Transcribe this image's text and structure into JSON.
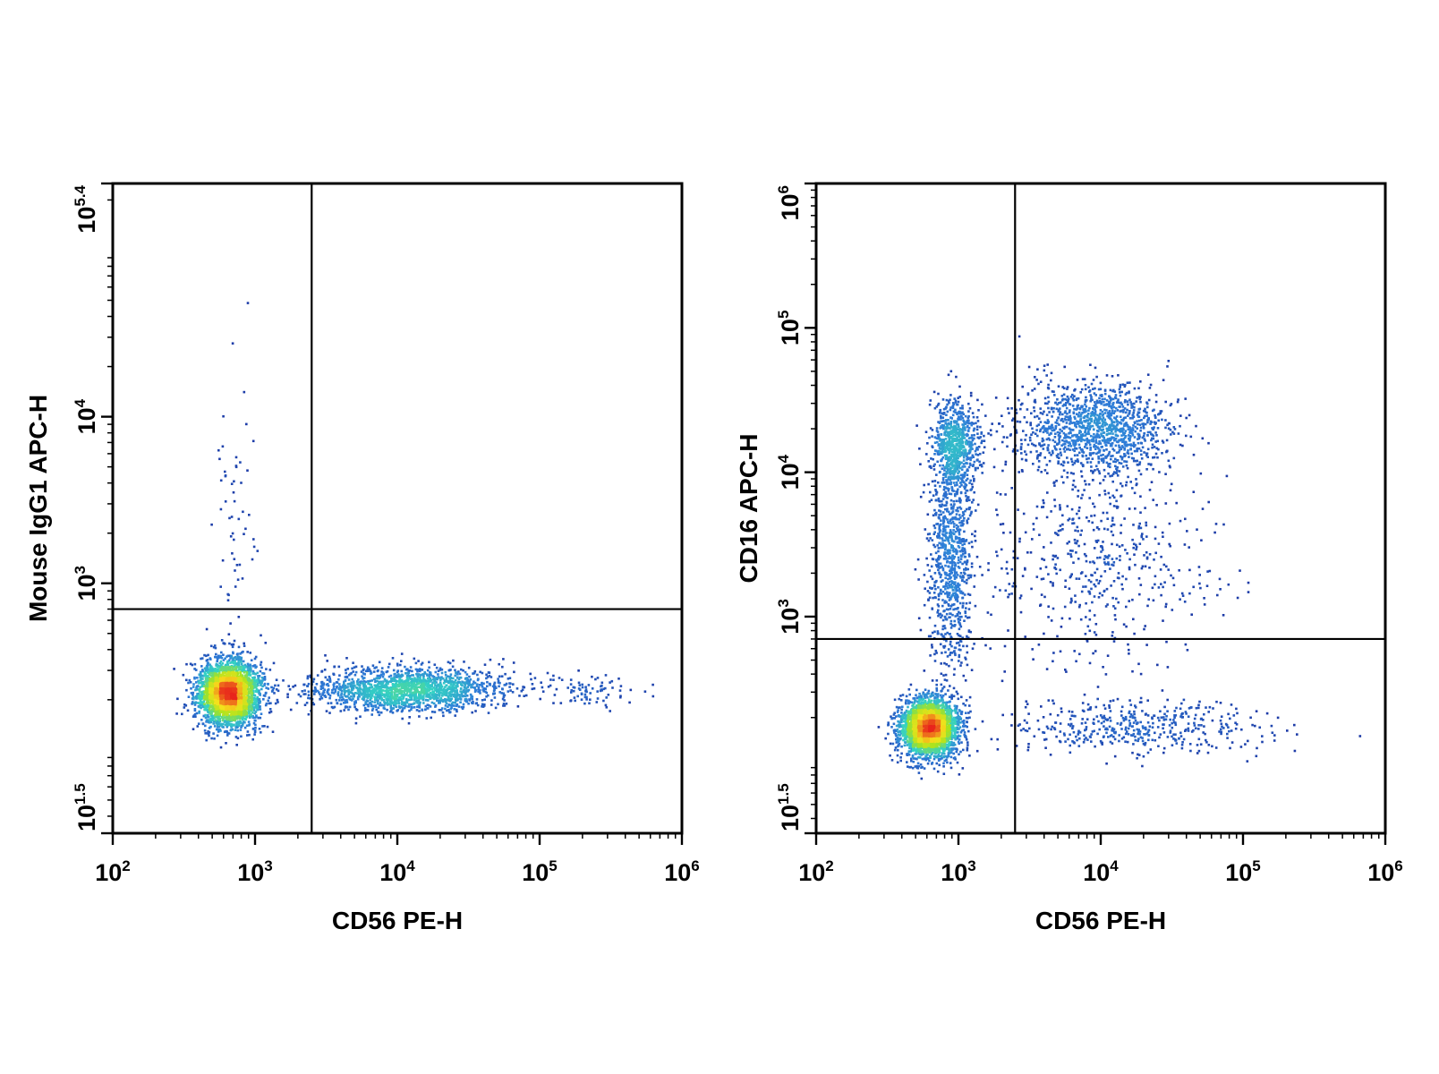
{
  "chart_data": [
    {
      "type": "scatter",
      "subtype": "flow-cytometry-density-dot-plot",
      "xlabel": "CD56 PE-H",
      "ylabel": "Mouse IgG1 APC-H",
      "x_scale": "log",
      "y_scale": "log",
      "xlim": [
        100,
        1000000
      ],
      "ylim": [
        31.6,
        251189
      ],
      "x_ticks": [
        {
          "value": 100,
          "base": "10",
          "exp": "2"
        },
        {
          "value": 1000,
          "base": "10",
          "exp": "3"
        },
        {
          "value": 10000,
          "base": "10",
          "exp": "4"
        },
        {
          "value": 100000,
          "base": "10",
          "exp": "5"
        },
        {
          "value": 1000000,
          "base": "10",
          "exp": "6"
        }
      ],
      "y_ticks": [
        {
          "value": 31.6,
          "base": "10",
          "exp": "1.5"
        },
        {
          "value": 1000,
          "base": "10",
          "exp": "3"
        },
        {
          "value": 10000,
          "base": "10",
          "exp": "4"
        },
        {
          "value": 251189,
          "base": "10",
          "exp": "5.4"
        }
      ],
      "quadrant_gate": {
        "x": 2500,
        "y": 700
      },
      "populations": [
        {
          "x_center": 650,
          "y_center": 220,
          "x_spread_log": 0.11,
          "y_spread_log": 0.1,
          "count": 2800
        },
        {
          "x_center": 12000,
          "y_center": 230,
          "x_spread_log": 0.35,
          "y_spread_log": 0.065,
          "count": 1700
        },
        {
          "x_center": 230000,
          "y_center": 230,
          "x_spread_log": 0.15,
          "y_spread_log": 0.05,
          "count": 80
        },
        {
          "x_center": 720,
          "y_center": 2500,
          "x_spread_log": 0.07,
          "y_spread_log": 0.45,
          "count": 60
        }
      ],
      "grid": false,
      "legend": "none"
    },
    {
      "type": "scatter",
      "subtype": "flow-cytometry-density-dot-plot",
      "xlabel": "CD56 PE-H",
      "ylabel": "CD16 APC-H",
      "x_scale": "log",
      "y_scale": "log",
      "xlim": [
        100,
        1000000
      ],
      "ylim": [
        31.6,
        1000000
      ],
      "x_ticks": [
        {
          "value": 100,
          "base": "10",
          "exp": "2"
        },
        {
          "value": 1000,
          "base": "10",
          "exp": "3"
        },
        {
          "value": 10000,
          "base": "10",
          "exp": "4"
        },
        {
          "value": 100000,
          "base": "10",
          "exp": "5"
        },
        {
          "value": 1000000,
          "base": "10",
          "exp": "6"
        }
      ],
      "y_ticks": [
        {
          "value": 31.6,
          "base": "10",
          "exp": "1.5"
        },
        {
          "value": 1000,
          "base": "10",
          "exp": "3"
        },
        {
          "value": 10000,
          "base": "10",
          "exp": "4"
        },
        {
          "value": 100000,
          "base": "10",
          "exp": "5"
        },
        {
          "value": 1000000,
          "base": "10",
          "exp": "6"
        }
      ],
      "quadrant_gate": {
        "x": 2500,
        "y": 700
      },
      "populations": [
        {
          "x_center": 620,
          "y_center": 170,
          "x_spread_log": 0.1,
          "y_spread_log": 0.1,
          "count": 2800
        },
        {
          "x_center": 950,
          "y_center": 15000,
          "x_spread_log": 0.08,
          "y_spread_log": 0.15,
          "count": 700
        },
        {
          "x_center": 9000,
          "y_center": 20000,
          "x_spread_log": 0.28,
          "y_spread_log": 0.16,
          "count": 1300
        },
        {
          "x_center": 880,
          "y_center": 2500,
          "x_spread_log": 0.08,
          "y_spread_log": 0.4,
          "count": 900
        },
        {
          "x_center": 9000,
          "y_center": 2500,
          "x_spread_log": 0.4,
          "y_spread_log": 0.38,
          "count": 550
        },
        {
          "x_center": 18000,
          "y_center": 170,
          "x_spread_log": 0.45,
          "y_spread_log": 0.09,
          "count": 450
        }
      ],
      "grid": false,
      "legend": "none"
    }
  ],
  "colors": {
    "density_low": "#1a2f9e",
    "density_mid_low": "#2f7fd9",
    "density_mid": "#33d1c4",
    "density_mid_high": "#a8e31f",
    "density_high": "#f6e21c",
    "density_peak": "#e8251c",
    "frame": "#000000"
  }
}
